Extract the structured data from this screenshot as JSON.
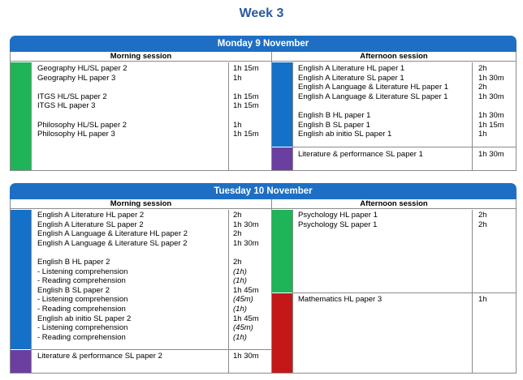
{
  "week_title": "Week 3",
  "colors": {
    "header_blue": "#1e6fc4",
    "title_blue": "#2a5aa0",
    "green": "#1fb457",
    "blue": "#1570c8",
    "purple": "#6b3fa0",
    "red": "#c41818"
  },
  "days": [
    {
      "header": "Monday 9 November",
      "morning_label": "Morning session",
      "afternoon_label": "Afternoon session",
      "morning": [
        {
          "subject": "Geography HL/SL paper 2",
          "duration": "1h 15m"
        },
        {
          "subject": "Geography HL paper 3",
          "duration": "1h"
        },
        {
          "subject": "",
          "duration": ""
        },
        {
          "subject": "ITGS HL/SL paper 2",
          "duration": "1h 15m"
        },
        {
          "subject": "ITGS HL paper 3",
          "duration": "1h 15m"
        },
        {
          "subject": "",
          "duration": ""
        },
        {
          "subject": "Philosophy HL/SL paper 2",
          "duration": "1h"
        },
        {
          "subject": "Philosophy HL paper 3",
          "duration": "1h 15m"
        }
      ],
      "afternoon": [
        {
          "subject": "English A Literature HL paper 1",
          "duration": "2h"
        },
        {
          "subject": "English A Literature SL paper 1",
          "duration": "1h 30m"
        },
        {
          "subject": "English A Language & Literature HL paper 1",
          "duration": "2h"
        },
        {
          "subject": "English A Language & Literature SL paper 1",
          "duration": "1h 30m"
        },
        {
          "subject": "",
          "duration": ""
        },
        {
          "subject": "English B HL paper 1",
          "duration": "1h 30m"
        },
        {
          "subject": "English B SL paper 1",
          "duration": "1h 15m"
        },
        {
          "subject": "English ab initio SL paper 1",
          "duration": "1h"
        }
      ],
      "afternoon_lower": [
        {
          "subject": "Literature & performance SL paper 1",
          "duration": "1h 30m"
        }
      ]
    },
    {
      "header": "Tuesday 10 November",
      "morning_label": "Morning session",
      "afternoon_label": "Afternoon session",
      "morning": [
        {
          "subject": "English A Literature HL paper 2",
          "duration": "2h"
        },
        {
          "subject": "English A Literature SL paper 2",
          "duration": "1h 30m"
        },
        {
          "subject": "English A Language & Literature HL paper 2",
          "duration": "2h"
        },
        {
          "subject": "English A Language & Literature SL paper 2",
          "duration": "1h 30m"
        },
        {
          "subject": "",
          "duration": ""
        },
        {
          "subject": "English B HL paper 2",
          "duration": "2h"
        },
        {
          "subject": "- Listening comprehension",
          "duration": "(1h)"
        },
        {
          "subject": "- Reading comprehension",
          "duration": "(1h)"
        },
        {
          "subject": "English B SL paper 2",
          "duration": "1h 45m"
        },
        {
          "subject": "- Listening comprehension",
          "duration": "(45m)"
        },
        {
          "subject": "- Reading comprehension",
          "duration": "(1h)"
        },
        {
          "subject": "English ab initio SL paper 2",
          "duration": "1h 45m"
        },
        {
          "subject": "- Listening comprehension",
          "duration": "(45m)"
        },
        {
          "subject": "- Reading comprehension",
          "duration": "(1h)"
        }
      ],
      "morning_lower": [
        {
          "subject": "Literature & performance SL paper 2",
          "duration": "1h 30m"
        }
      ],
      "afternoon": [
        {
          "subject": "Psychology HL paper 1",
          "duration": "2h"
        },
        {
          "subject": "Psychology SL paper 1",
          "duration": "2h"
        }
      ],
      "afternoon_lower": [
        {
          "subject": "Mathematics HL paper 3",
          "duration": "1h"
        }
      ]
    }
  ]
}
